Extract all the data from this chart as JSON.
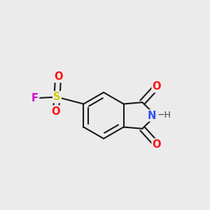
{
  "bg_color": "#ebebeb",
  "bond_color": "#1a1a1a",
  "bond_width": 1.5,
  "atom_colors": {
    "O": "#ff0d0d",
    "N": "#3050f8",
    "S": "#cccc00",
    "F": "#cc00cc",
    "C": "#1a1a1a",
    "H": "#404040"
  },
  "font_size_atom": 10.5,
  "font_size_h": 9.0
}
